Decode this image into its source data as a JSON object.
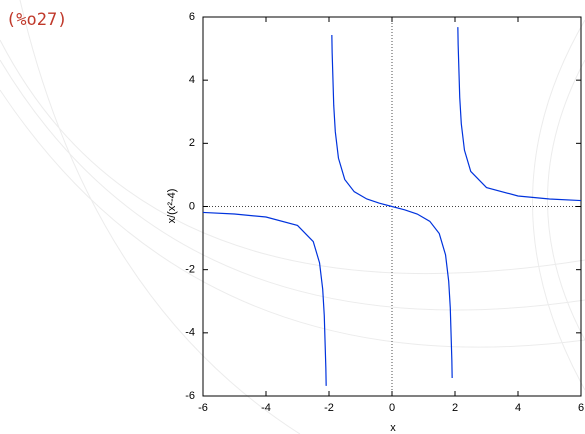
{
  "output_label": "(%o27)",
  "chart_data": {
    "type": "line",
    "xlabel": "x",
    "ylabel": "x/(x²-4)",
    "x": [
      -6,
      -5,
      -4,
      -3,
      -2.5,
      -2.3,
      -2.2,
      -2.15,
      -2.1,
      -2.09,
      -2,
      -1.91,
      -1.9,
      -1.85,
      -1.8,
      -1.7,
      -1.5,
      -1.2,
      -0.8,
      -0.4,
      0,
      0.4,
      0.8,
      1.2,
      1.5,
      1.7,
      1.8,
      1.85,
      1.9,
      1.91,
      2,
      2.09,
      2.1,
      2.15,
      2.2,
      2.3,
      2.5,
      3,
      4,
      5,
      6
    ],
    "series": [
      {
        "color": "#0033dd",
        "values": [
          -0.1875,
          -0.238,
          -0.333,
          -0.6,
          -1.111,
          -1.783,
          -2.619,
          -3.454,
          -5.122,
          -5.678,
          null,
          5.43,
          4.872,
          3.203,
          2.368,
          1.532,
          0.857,
          0.469,
          0.238,
          0.104,
          0,
          -0.104,
          -0.238,
          -0.469,
          -0.857,
          -1.532,
          -2.368,
          -3.203,
          -4.872,
          -5.43,
          null,
          5.678,
          5.122,
          3.454,
          2.619,
          1.783,
          1.111,
          0.6,
          0.333,
          0.238,
          0.1875
        ]
      }
    ],
    "xlim": [
      -6,
      6
    ],
    "ylim": [
      -6,
      6
    ],
    "xticks": [
      -6,
      -4,
      -2,
      0,
      2,
      4,
      6
    ],
    "yticks": [
      -6,
      -4,
      -2,
      0,
      2,
      4,
      6
    ],
    "zero_axes": true
  }
}
